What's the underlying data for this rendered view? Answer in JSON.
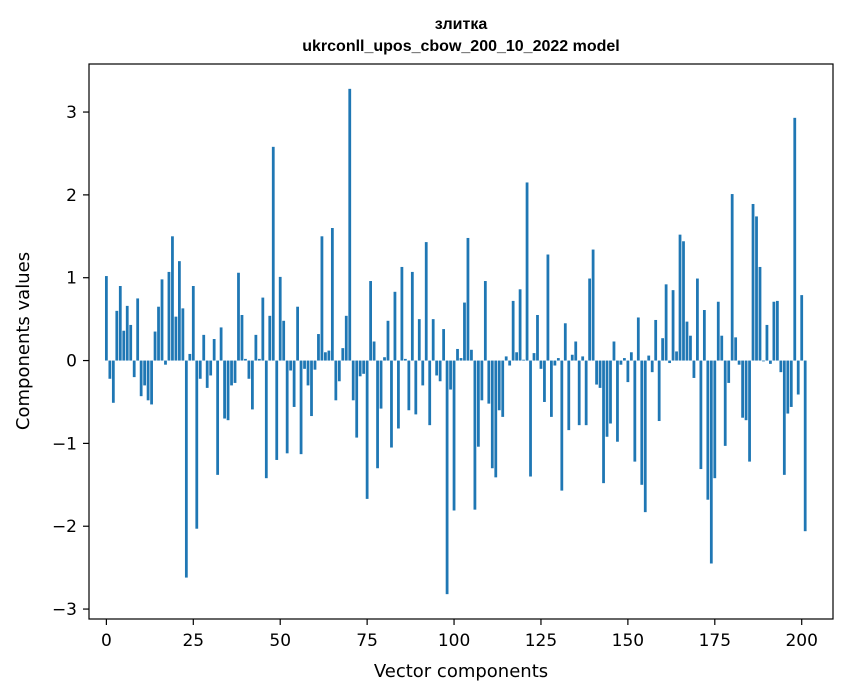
{
  "chart_data": {
    "type": "bar",
    "title": "злитка",
    "subtitle": "ukrconll_upos_cbow_200_10_2022 model",
    "xlabel": "Vector components",
    "ylabel": "Components values",
    "xlim": [
      -5,
      209
    ],
    "ylim": [
      -3.12,
      3.58
    ],
    "xticks": [
      0,
      25,
      50,
      75,
      100,
      125,
      150,
      175,
      200
    ],
    "yticks": [
      -3,
      -2,
      -1,
      0,
      1,
      2,
      3
    ],
    "xtick_labels": [
      "0",
      "25",
      "50",
      "75",
      "100",
      "125",
      "150",
      "175",
      "200"
    ],
    "ytick_labels": [
      "−3",
      "−2",
      "−1",
      "0",
      "1",
      "2",
      "3"
    ],
    "grid": false,
    "bar_color": "#1f77b4",
    "values": [
      1.02,
      -0.22,
      -0.51,
      0.6,
      0.9,
      0.36,
      0.66,
      0.43,
      -0.2,
      0.75,
      -0.43,
      -0.3,
      -0.48,
      -0.53,
      0.35,
      0.65,
      0.98,
      -0.05,
      1.07,
      1.5,
      0.53,
      1.2,
      0.63,
      -2.62,
      0.08,
      0.9,
      -2.03,
      -0.22,
      0.31,
      -0.33,
      -0.18,
      0.26,
      -1.38,
      0.4,
      -0.7,
      -0.72,
      -0.3,
      -0.27,
      1.06,
      0.55,
      0.02,
      -0.22,
      -0.59,
      0.31,
      0.02,
      0.76,
      -1.42,
      0.54,
      2.58,
      -1.2,
      1.01,
      0.48,
      -1.12,
      -0.12,
      -0.56,
      0.65,
      -1.13,
      -0.1,
      -0.3,
      -0.67,
      -0.11,
      0.32,
      1.5,
      0.1,
      0.12,
      1.6,
      -0.48,
      -0.25,
      0.15,
      0.54,
      3.28,
      -0.48,
      -0.93,
      -0.19,
      -0.16,
      -1.67,
      0.96,
      0.23,
      -1.3,
      -0.58,
      0.04,
      0.48,
      -1.05,
      0.83,
      -0.82,
      1.13,
      0.02,
      -0.6,
      1.07,
      -0.65,
      0.5,
      -0.3,
      1.43,
      -0.78,
      0.5,
      -0.18,
      -0.25,
      0.38,
      -2.82,
      -0.35,
      -1.81,
      0.14,
      0.03,
      0.7,
      1.48,
      0.13,
      -1.8,
      -1.04,
      -0.48,
      0.96,
      -0.52,
      -1.3,
      -1.41,
      -0.6,
      -0.68,
      0.05,
      -0.06,
      0.72,
      0.1,
      0.86,
      0.01,
      2.15,
      -1.4,
      0.09,
      0.55,
      -0.1,
      -0.5,
      1.28,
      -0.68,
      -0.06,
      0.03,
      -1.57,
      0.45,
      -0.84,
      0.07,
      0.23,
      -0.78,
      0.05,
      -0.78,
      0.99,
      1.34,
      -0.29,
      -0.33,
      -1.48,
      -0.92,
      -0.76,
      0.23,
      -0.98,
      -0.05,
      0.03,
      -0.26,
      0.1,
      -1.22,
      0.52,
      -1.5,
      -1.83,
      0.06,
      -0.14,
      0.49,
      -0.73,
      0.27,
      0.92,
      -0.03,
      0.85,
      0.11,
      1.52,
      1.44,
      0.47,
      0.3,
      -0.21,
      0.99,
      -1.31,
      0.61,
      -1.68,
      -2.45,
      -1.42,
      0.71,
      0.3,
      -1.03,
      -0.27,
      2.01,
      0.28,
      -0.05,
      -0.69,
      -0.72,
      -1.22,
      1.89,
      1.74,
      1.13,
      -0.01,
      0.43,
      -0.04,
      0.71,
      0.72,
      -0.14,
      -1.38,
      -0.64,
      -0.56,
      2.93,
      -0.41,
      0.79,
      -2.06
    ]
  }
}
